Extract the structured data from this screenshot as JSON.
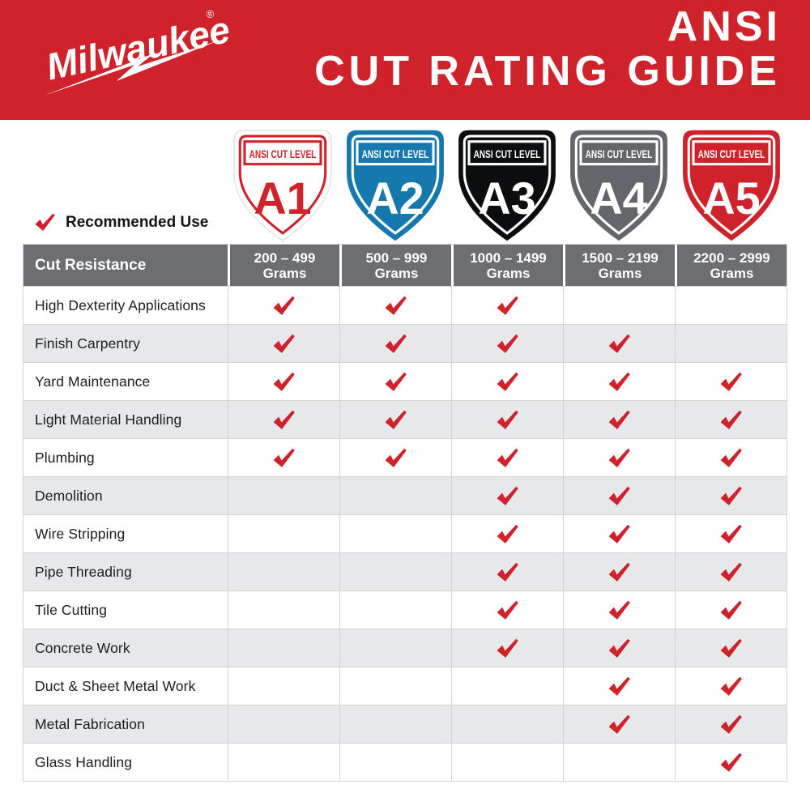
{
  "brand": {
    "logo_text": "Milwaukee",
    "registered": "®"
  },
  "header": {
    "title_line1": "ANSI",
    "title_line2": "CUT RATING GUIDE"
  },
  "legend": {
    "label": "Recommended Use"
  },
  "shields": [
    {
      "band_label": "ANSI CUT LEVEL",
      "level": "A1",
      "fill": "#FFFFFF",
      "accent": "#CF222B"
    },
    {
      "band_label": "ANSI CUT LEVEL",
      "level": "A2",
      "fill": "#1679AD",
      "accent": "#FFFFFF"
    },
    {
      "band_label": "ANSI CUT LEVEL",
      "level": "A3",
      "fill": "#0C0D0F",
      "accent": "#FFFFFF"
    },
    {
      "band_label": "ANSI CUT LEVEL",
      "level": "A4",
      "fill": "#63666A",
      "accent": "#FFFFFF"
    },
    {
      "band_label": "ANSI CUT LEVEL",
      "level": "A5",
      "fill": "#CF222B",
      "accent": "#FFFFFF"
    }
  ],
  "table": {
    "corner_header": "Cut Resistance",
    "columns": [
      {
        "range": "200 – 499",
        "unit": "Grams"
      },
      {
        "range": "500 – 999",
        "unit": "Grams"
      },
      {
        "range": "1000 – 1499",
        "unit": "Grams"
      },
      {
        "range": "1500 – 2199",
        "unit": "Grams"
      },
      {
        "range": "2200 – 2999",
        "unit": "Grams"
      }
    ],
    "rows": [
      {
        "label": "High Dexterity Applications",
        "checks": [
          true,
          true,
          true,
          false,
          false
        ]
      },
      {
        "label": "Finish Carpentry",
        "checks": [
          true,
          true,
          true,
          true,
          false
        ]
      },
      {
        "label": "Yard Maintenance",
        "checks": [
          true,
          true,
          true,
          true,
          true
        ]
      },
      {
        "label": "Light Material Handling",
        "checks": [
          true,
          true,
          true,
          true,
          true
        ]
      },
      {
        "label": "Plumbing",
        "checks": [
          true,
          true,
          true,
          true,
          true
        ]
      },
      {
        "label": "Demolition",
        "checks": [
          false,
          false,
          true,
          true,
          true
        ]
      },
      {
        "label": "Wire Stripping",
        "checks": [
          false,
          false,
          true,
          true,
          true
        ]
      },
      {
        "label": "Pipe Threading",
        "checks": [
          false,
          false,
          true,
          true,
          true
        ]
      },
      {
        "label": "Tile Cutting",
        "checks": [
          false,
          false,
          true,
          true,
          true
        ]
      },
      {
        "label": "Concrete Work",
        "checks": [
          false,
          false,
          true,
          true,
          true
        ]
      },
      {
        "label": "Duct & Sheet Metal Work",
        "checks": [
          false,
          false,
          false,
          true,
          true
        ]
      },
      {
        "label": "Metal Fabrication",
        "checks": [
          false,
          false,
          false,
          true,
          true
        ]
      },
      {
        "label": "Glass Handling",
        "checks": [
          false,
          false,
          false,
          false,
          true
        ]
      }
    ]
  },
  "colors": {
    "brand_red": "#CF222B",
    "a2_blue": "#1679AD",
    "a3_black": "#0C0D0F",
    "a4_gray": "#63666A",
    "header_row_gray": "#6D6E71",
    "alt_row_gray": "#E7E8E9",
    "cell_border": "#D2D4D5",
    "check_red": "#CF222B"
  }
}
